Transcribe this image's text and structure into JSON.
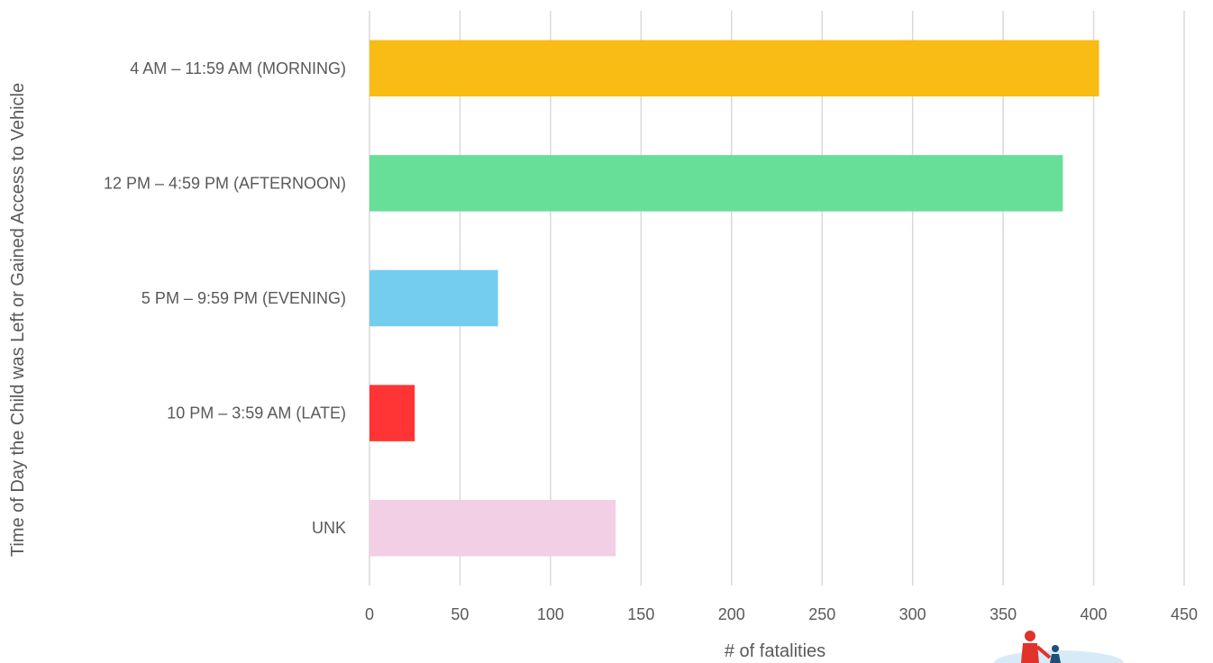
{
  "chart_data": {
    "type": "bar",
    "orientation": "horizontal",
    "categories": [
      "4 AM – 11:59 AM  (MORNING)",
      "12 PM – 4:59 PM  (AFTERNOON)",
      "5 PM – 9:59 PM  (EVENING)",
      "10 PM – 3:59 AM  (LATE)",
      "UNK"
    ],
    "values": [
      403,
      383,
      71,
      25,
      136
    ],
    "colors": [
      "#F9BC15",
      "#67DF98",
      "#75CDEE",
      "#FF3535",
      "#F2CFE4"
    ],
    "xlabel": "# of fatalities",
    "ylabel": "Time of Day the Child was Left or Gained Access to Vehicle",
    "xlim": [
      0,
      450
    ],
    "xticks": [
      0,
      50,
      100,
      150,
      200,
      250,
      300,
      350,
      400,
      450
    ],
    "grid": "vertical"
  },
  "logo": {
    "icon": "child-car-safety-logo-icon"
  }
}
